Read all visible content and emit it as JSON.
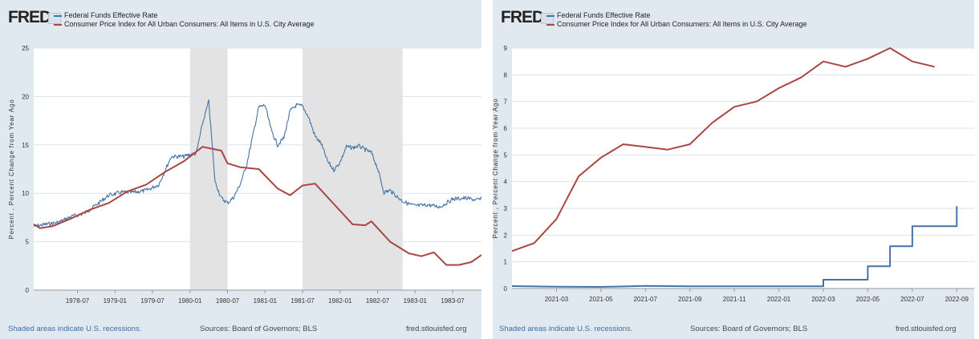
{
  "panels": [
    {
      "id": "left",
      "logo": "FRED",
      "logo_icon": "fred-chart-icon",
      "legend": [
        {
          "label": "Federal Funds Effective Rate",
          "color": "#4572a7"
        },
        {
          "label": "Consumer Price Index for All Urban Consumers: All Items in U.S. City Average",
          "color": "#aa4643"
        }
      ],
      "ylabel": "Percent , Percent Change from Year Ago",
      "footer": {
        "left": "Shaded areas indicate U.S. recessions.",
        "center": "Sources: Board of Governors; BLS",
        "right": "fred.stlouisfed.org"
      }
    },
    {
      "id": "right",
      "logo": "FRED",
      "logo_icon": "fred-chart-icon",
      "legend": [
        {
          "label": "Federal Funds Effective Rate",
          "color": "#4572a7"
        },
        {
          "label": "Consumer Price Index for All Urban Consumers: All Items in U.S. City Average",
          "color": "#aa4643"
        }
      ],
      "ylabel": "Percent , Percent Change from Year Ago",
      "footer": {
        "left": "Shaded areas indicate U.S. recessions.",
        "center": "Sources: Board of Governors; BLS",
        "right": "fred.stlouisfed.org"
      }
    }
  ],
  "chart_data": [
    {
      "type": "line",
      "title": "",
      "ylabel": "Percent , Percent Change from Year Ago",
      "ylim": [
        0,
        25
      ],
      "yticks": [
        0,
        5,
        10,
        15,
        20,
        25
      ],
      "x_range": [
        "1977-12",
        "1983-12"
      ],
      "xticks": [
        "1978-07",
        "1979-01",
        "1979-07",
        "1980-01",
        "1980-07",
        "1981-01",
        "1981-07",
        "1982-01",
        "1982-07",
        "1983-01",
        "1983-07"
      ],
      "recessions": [
        [
          "1980-01",
          "1980-07"
        ],
        [
          "1981-07",
          "1982-11"
        ]
      ],
      "grid": true,
      "legend_position": "top-left",
      "series": [
        {
          "name": "Federal Funds Effective Rate",
          "color": "#4572a7",
          "points": [
            [
              "1977-12",
              6.6
            ],
            [
              "1978-02",
              6.8
            ],
            [
              "1978-04",
              7.0
            ],
            [
              "1978-06",
              7.6
            ],
            [
              "1978-08",
              7.9
            ],
            [
              "1978-10",
              8.8
            ],
            [
              "1978-12",
              9.8
            ],
            [
              "1979-02",
              10.1
            ],
            [
              "1979-04",
              10.1
            ],
            [
              "1979-06",
              10.3
            ],
            [
              "1979-08",
              10.9
            ],
            [
              "1979-10",
              13.8
            ],
            [
              "1979-12",
              13.8
            ],
            [
              "1980-01",
              14.0
            ],
            [
              "1980-02",
              14.1
            ],
            [
              "1980-03",
              17.2
            ],
            [
              "1980-04",
              19.5
            ],
            [
              "1980-05",
              11.2
            ],
            [
              "1980-06",
              9.5
            ],
            [
              "1980-07",
              9.0
            ],
            [
              "1980-08",
              9.6
            ],
            [
              "1980-09",
              10.9
            ],
            [
              "1980-10",
              12.8
            ],
            [
              "1980-11",
              15.8
            ],
            [
              "1980-12",
              18.9
            ],
            [
              "1981-01",
              19.1
            ],
            [
              "1981-02",
              16.5
            ],
            [
              "1981-03",
              15.0
            ],
            [
              "1981-04",
              15.7
            ],
            [
              "1981-05",
              18.5
            ],
            [
              "1981-06",
              19.1
            ],
            [
              "1981-07",
              19.0
            ],
            [
              "1981-08",
              17.8
            ],
            [
              "1981-09",
              15.9
            ],
            [
              "1981-10",
              15.1
            ],
            [
              "1981-11",
              13.3
            ],
            [
              "1981-12",
              12.4
            ],
            [
              "1982-01",
              13.2
            ],
            [
              "1982-02",
              14.8
            ],
            [
              "1982-03",
              14.7
            ],
            [
              "1982-04",
              14.9
            ],
            [
              "1982-05",
              14.5
            ],
            [
              "1982-06",
              14.2
            ],
            [
              "1982-07",
              12.6
            ],
            [
              "1982-08",
              10.1
            ],
            [
              "1982-09",
              10.3
            ],
            [
              "1982-10",
              9.7
            ],
            [
              "1982-11",
              9.2
            ],
            [
              "1982-12",
              8.9
            ],
            [
              "1983-01",
              8.7
            ],
            [
              "1983-03",
              8.8
            ],
            [
              "1983-05",
              8.6
            ],
            [
              "1983-07",
              9.4
            ],
            [
              "1983-09",
              9.5
            ],
            [
              "1983-11",
              9.3
            ],
            [
              "1983-12",
              9.5
            ]
          ]
        },
        {
          "name": "Consumer Price Index for All Urban Consumers: All Items in U.S. City Average",
          "color": "#aa4643",
          "points": [
            [
              "1977-12",
              6.8
            ],
            [
              "1978-01",
              6.4
            ],
            [
              "1978-03",
              6.6
            ],
            [
              "1978-06",
              7.4
            ],
            [
              "1978-09",
              8.3
            ],
            [
              "1978-12",
              9.0
            ],
            [
              "1979-03",
              10.2
            ],
            [
              "1979-06",
              10.9
            ],
            [
              "1979-09",
              12.2
            ],
            [
              "1979-12",
              13.3
            ],
            [
              "1980-03",
              14.8
            ],
            [
              "1980-06",
              14.4
            ],
            [
              "1980-07",
              13.1
            ],
            [
              "1980-09",
              12.7
            ],
            [
              "1980-12",
              12.5
            ],
            [
              "1981-03",
              10.5
            ],
            [
              "1981-05",
              9.8
            ],
            [
              "1981-07",
              10.8
            ],
            [
              "1981-09",
              11.0
            ],
            [
              "1981-12",
              8.9
            ],
            [
              "1982-03",
              6.8
            ],
            [
              "1982-05",
              6.7
            ],
            [
              "1982-06",
              7.1
            ],
            [
              "1982-09",
              5.0
            ],
            [
              "1982-12",
              3.8
            ],
            [
              "1983-02",
              3.5
            ],
            [
              "1983-04",
              3.9
            ],
            [
              "1983-06",
              2.6
            ],
            [
              "1983-08",
              2.6
            ],
            [
              "1983-10",
              2.9
            ],
            [
              "1983-12",
              3.8
            ]
          ]
        }
      ]
    },
    {
      "type": "line",
      "title": "",
      "ylabel": "Percent , Percent Change from Year Ago",
      "ylim": [
        0,
        9
      ],
      "yticks": [
        0,
        1,
        2,
        3,
        4,
        5,
        6,
        7,
        8,
        9
      ],
      "x_range": [
        "2021-01",
        "2022-10"
      ],
      "xticks": [
        "2021-03",
        "2021-05",
        "2021-07",
        "2021-09",
        "2021-11",
        "2022-01",
        "2022-03",
        "2022-05",
        "2022-07",
        "2022-09"
      ],
      "recessions": [],
      "grid": true,
      "legend_position": "top-left",
      "series": [
        {
          "name": "Federal Funds Effective Rate",
          "color": "#4572a7",
          "points": [
            [
              "2021-01",
              0.09
            ],
            [
              "2021-03",
              0.07
            ],
            [
              "2021-05",
              0.06
            ],
            [
              "2021-07",
              0.1
            ],
            [
              "2021-09",
              0.08
            ],
            [
              "2021-11",
              0.08
            ],
            [
              "2022-01",
              0.08
            ],
            [
              "2022-03",
              0.08
            ],
            [
              "2022-03",
              0.33
            ],
            [
              "2022-05",
              0.33
            ],
            [
              "2022-05",
              0.83
            ],
            [
              "2022-06",
              0.83
            ],
            [
              "2022-06",
              1.58
            ],
            [
              "2022-07",
              1.58
            ],
            [
              "2022-07",
              2.33
            ],
            [
              "2022-09",
              2.33
            ],
            [
              "2022-09",
              3.08
            ]
          ]
        },
        {
          "name": "Consumer Price Index for All Urban Consumers: All Items in U.S. City Average",
          "color": "#aa4643",
          "points": [
            [
              "2021-01",
              1.4
            ],
            [
              "2021-02",
              1.7
            ],
            [
              "2021-03",
              2.6
            ],
            [
              "2021-04",
              4.2
            ],
            [
              "2021-05",
              4.9
            ],
            [
              "2021-06",
              5.4
            ],
            [
              "2021-07",
              5.3
            ],
            [
              "2021-08",
              5.2
            ],
            [
              "2021-09",
              5.4
            ],
            [
              "2021-10",
              6.2
            ],
            [
              "2021-11",
              6.8
            ],
            [
              "2021-12",
              7.0
            ],
            [
              "2022-01",
              7.5
            ],
            [
              "2022-02",
              7.9
            ],
            [
              "2022-03",
              8.5
            ],
            [
              "2022-04",
              8.3
            ],
            [
              "2022-05",
              8.6
            ],
            [
              "2022-06",
              9.0
            ],
            [
              "2022-07",
              8.5
            ],
            [
              "2022-08",
              8.3
            ]
          ]
        }
      ]
    }
  ]
}
